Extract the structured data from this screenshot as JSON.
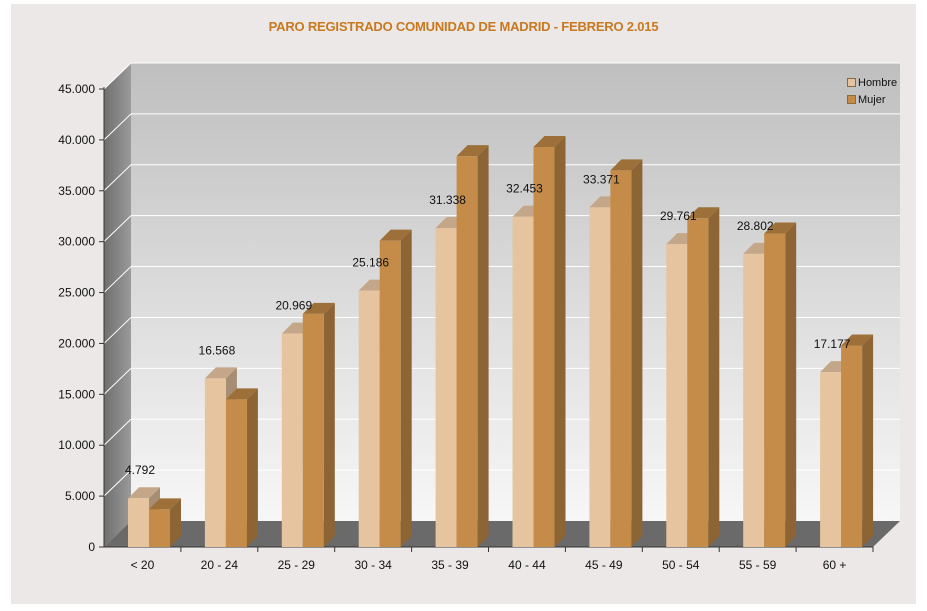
{
  "chart_data": {
    "type": "bar",
    "title": "PARO REGISTRADO COMUNIDAD DE MADRID -  FEBRERO 2.015",
    "categories": [
      "< 20",
      "20 - 24",
      "25 - 29",
      "30 - 34",
      "35 - 39",
      "40 - 44",
      "45 - 49",
      "50 - 54",
      "55 - 59",
      "60 +"
    ],
    "series": [
      {
        "name": "Hombre",
        "values": [
          4792,
          16568,
          20969,
          25186,
          31338,
          32453,
          33371,
          29761,
          28802,
          17177
        ],
        "color": "#e6c4a0"
      },
      {
        "name": "Mujer",
        "values": [
          3700,
          14500,
          22900,
          30100,
          38400,
          39300,
          37000,
          32300,
          30800,
          19800
        ],
        "color": "#c48c48"
      }
    ],
    "data_labels": [
      "4.792",
      "16.568",
      "20.969",
      "25.186",
      "31.338",
      "32.453",
      "33.371",
      "29.761",
      "28.802",
      "17.177"
    ],
    "yticks": [
      "0",
      "5.000",
      "10.000",
      "15.000",
      "20.000",
      "25.000",
      "30.000",
      "35.000",
      "40.000",
      "45.000"
    ],
    "ylim": [
      0,
      45000
    ],
    "legend_position": "top-right",
    "grid": true
  }
}
